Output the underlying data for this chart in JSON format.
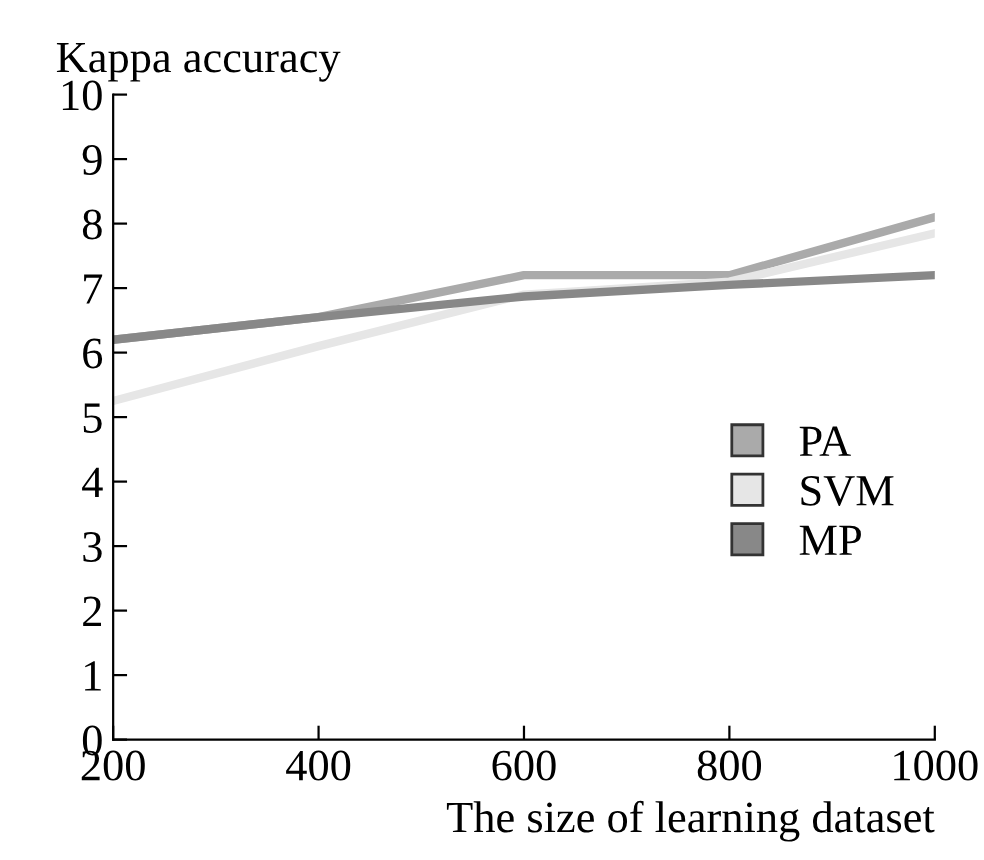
{
  "chart_data": {
    "type": "line",
    "xlabel": "The size of learning dataset",
    "ylabel": "Kappa accuracy",
    "x": [
      200,
      400,
      600,
      800,
      1000
    ],
    "series": [
      {
        "name": "PA",
        "color": "#aaaaaa",
        "values": [
          6.2,
          6.55,
          7.2,
          7.2,
          8.1
        ]
      },
      {
        "name": "SVM",
        "color": "#e6e6e6",
        "values": [
          5.25,
          6.1,
          6.9,
          7.1,
          7.85
        ]
      },
      {
        "name": "MP",
        "color": "#888888",
        "values": [
          6.2,
          6.55,
          6.87,
          7.05,
          7.2
        ]
      }
    ],
    "xlim": [
      200,
      1000
    ],
    "xticks": [
      200,
      400,
      600,
      800,
      1000
    ],
    "ylim": [
      0,
      10
    ],
    "yticks": [
      0,
      1,
      2,
      3,
      4,
      5,
      6,
      7,
      8,
      9,
      10
    ],
    "grid": false,
    "legend": "right",
    "marker": "none"
  }
}
